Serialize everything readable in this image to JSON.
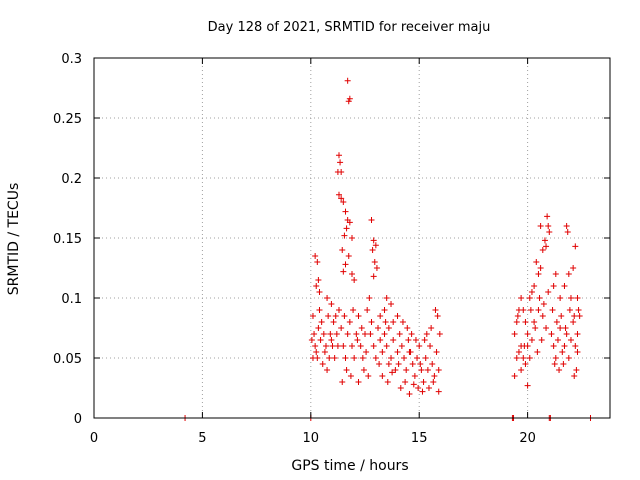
{
  "chart_data": {
    "type": "scatter",
    "title": "Day 128 of 2021, SRMTID for receiver maju",
    "xlabel": "GPS time / hours",
    "ylabel": "SRMTID / TECUs",
    "xlim": [
      0,
      23.8
    ],
    "ylim": [
      0,
      0.3
    ],
    "xticks": [
      0,
      5,
      10,
      15,
      20
    ],
    "xtick_labels": [
      "0",
      "5",
      "10",
      "15",
      "20"
    ],
    "yticks": [
      0,
      0.05,
      0.1,
      0.15,
      0.2,
      0.25,
      0.3
    ],
    "ytick_labels": [
      "0",
      "0.05",
      "0.1",
      "0.15",
      "0.2",
      "0.25",
      "0.3"
    ],
    "grid": true,
    "marker": "+",
    "color": "#e00000",
    "series": [
      {
        "name": "SRMTID",
        "points": [
          [
            4.2,
            0.0
          ],
          [
            10.0,
            0.0
          ],
          [
            19.3,
            0.0
          ],
          [
            19.35,
            0.0
          ],
          [
            21.0,
            0.0
          ],
          [
            21.05,
            0.0
          ],
          [
            22.9,
            0.0
          ],
          [
            11.7,
            0.281
          ],
          [
            11.8,
            0.266
          ],
          [
            11.75,
            0.264
          ],
          [
            11.3,
            0.219
          ],
          [
            11.35,
            0.213
          ],
          [
            11.4,
            0.205
          ],
          [
            11.25,
            0.205
          ],
          [
            11.3,
            0.186
          ],
          [
            11.4,
            0.183
          ],
          [
            11.5,
            0.18
          ],
          [
            11.6,
            0.172
          ],
          [
            11.7,
            0.165
          ],
          [
            11.8,
            0.163
          ],
          [
            11.65,
            0.158
          ],
          [
            11.55,
            0.152
          ],
          [
            11.9,
            0.15
          ],
          [
            11.45,
            0.14
          ],
          [
            11.75,
            0.135
          ],
          [
            11.6,
            0.128
          ],
          [
            11.5,
            0.122
          ],
          [
            11.9,
            0.12
          ],
          [
            12.0,
            0.115
          ],
          [
            12.8,
            0.165
          ],
          [
            12.9,
            0.148
          ],
          [
            13.0,
            0.144
          ],
          [
            12.85,
            0.14
          ],
          [
            12.95,
            0.13
          ],
          [
            13.05,
            0.125
          ],
          [
            12.9,
            0.118
          ],
          [
            10.2,
            0.135
          ],
          [
            10.3,
            0.13
          ],
          [
            10.25,
            0.11
          ],
          [
            10.4,
            0.105
          ],
          [
            10.35,
            0.115
          ],
          [
            20.6,
            0.16
          ],
          [
            20.9,
            0.168
          ],
          [
            20.95,
            0.16
          ],
          [
            21.0,
            0.155
          ],
          [
            20.8,
            0.148
          ],
          [
            20.85,
            0.143
          ],
          [
            20.7,
            0.14
          ],
          [
            21.8,
            0.16
          ],
          [
            21.85,
            0.155
          ],
          [
            22.2,
            0.143
          ],
          [
            22.1,
            0.125
          ],
          [
            20.4,
            0.13
          ],
          [
            20.5,
            0.12
          ],
          [
            20.6,
            0.125
          ],
          [
            20.3,
            0.11
          ],
          [
            20.2,
            0.105
          ],
          [
            20.1,
            0.1
          ],
          [
            21.2,
            0.11
          ],
          [
            21.3,
            0.12
          ],
          [
            21.5,
            0.1
          ],
          [
            21.7,
            0.11
          ],
          [
            21.9,
            0.12
          ],
          [
            22.0,
            0.1
          ],
          [
            19.4,
            0.07
          ],
          [
            19.5,
            0.08
          ],
          [
            19.6,
            0.09
          ],
          [
            19.7,
            0.1
          ],
          [
            19.8,
            0.09
          ],
          [
            19.9,
            0.08
          ],
          [
            20.0,
            0.07
          ],
          [
            19.5,
            0.05
          ],
          [
            19.6,
            0.055
          ],
          [
            19.7,
            0.06
          ],
          [
            19.8,
            0.05
          ],
          [
            19.9,
            0.045
          ],
          [
            20.0,
            0.06
          ],
          [
            20.1,
            0.05
          ],
          [
            19.4,
            0.035
          ],
          [
            19.7,
            0.04
          ],
          [
            20.0,
            0.027
          ],
          [
            20.2,
            0.065
          ],
          [
            20.3,
            0.08
          ],
          [
            20.5,
            0.09
          ],
          [
            20.7,
            0.085
          ],
          [
            21.1,
            0.07
          ],
          [
            21.2,
            0.06
          ],
          [
            21.3,
            0.05
          ],
          [
            21.4,
            0.065
          ],
          [
            21.5,
            0.075
          ],
          [
            21.6,
            0.055
          ],
          [
            21.7,
            0.06
          ],
          [
            21.8,
            0.07
          ],
          [
            21.9,
            0.05
          ],
          [
            22.0,
            0.065
          ],
          [
            22.1,
            0.08
          ],
          [
            22.2,
            0.06
          ],
          [
            22.25,
            0.04
          ],
          [
            22.15,
            0.035
          ],
          [
            22.3,
            0.07
          ],
          [
            22.35,
            0.09
          ],
          [
            22.3,
            0.1
          ],
          [
            22.4,
            0.085
          ],
          [
            10.1,
            0.085
          ],
          [
            10.15,
            0.07
          ],
          [
            10.2,
            0.06
          ],
          [
            10.3,
            0.05
          ],
          [
            10.35,
            0.075
          ],
          [
            10.4,
            0.09
          ],
          [
            10.5,
            0.08
          ],
          [
            10.6,
            0.07
          ],
          [
            10.7,
            0.06
          ],
          [
            10.8,
            0.085
          ],
          [
            10.9,
            0.07
          ],
          [
            11.0,
            0.06
          ],
          [
            11.1,
            0.05
          ],
          [
            11.2,
            0.07
          ],
          [
            10.55,
            0.045
          ],
          [
            10.65,
            0.055
          ],
          [
            10.75,
            0.04
          ],
          [
            10.85,
            0.05
          ],
          [
            10.95,
            0.065
          ],
          [
            11.05,
            0.08
          ],
          [
            11.3,
            0.09
          ],
          [
            11.4,
            0.075
          ],
          [
            11.5,
            0.06
          ],
          [
            11.6,
            0.05
          ],
          [
            11.7,
            0.07
          ],
          [
            11.8,
            0.08
          ],
          [
            11.9,
            0.06
          ],
          [
            11.45,
            0.03
          ],
          [
            11.65,
            0.04
          ],
          [
            11.85,
            0.035
          ],
          [
            12.0,
            0.05
          ],
          [
            12.1,
            0.07
          ],
          [
            12.2,
            0.085
          ],
          [
            12.3,
            0.06
          ],
          [
            12.4,
            0.05
          ],
          [
            12.5,
            0.07
          ],
          [
            12.6,
            0.09
          ],
          [
            12.7,
            0.1
          ],
          [
            12.8,
            0.08
          ],
          [
            12.9,
            0.06
          ],
          [
            13.0,
            0.05
          ],
          [
            12.2,
            0.03
          ],
          [
            12.45,
            0.04
          ],
          [
            12.65,
            0.035
          ],
          [
            13.1,
            0.075
          ],
          [
            13.2,
            0.065
          ],
          [
            13.3,
            0.055
          ],
          [
            13.4,
            0.07
          ],
          [
            13.5,
            0.06
          ],
          [
            13.6,
            0.045
          ],
          [
            13.7,
            0.05
          ],
          [
            13.8,
            0.065
          ],
          [
            13.9,
            0.04
          ],
          [
            14.0,
            0.055
          ],
          [
            14.1,
            0.07
          ],
          [
            13.2,
            0.085
          ],
          [
            13.4,
            0.09
          ],
          [
            13.6,
            0.075
          ],
          [
            13.8,
            0.08
          ],
          [
            14.0,
            0.085
          ],
          [
            13.5,
            0.1
          ],
          [
            13.7,
            0.095
          ],
          [
            13.3,
            0.035
          ],
          [
            13.55,
            0.03
          ],
          [
            13.75,
            0.038
          ],
          [
            14.2,
            0.06
          ],
          [
            14.3,
            0.05
          ],
          [
            14.4,
            0.04
          ],
          [
            14.5,
            0.065
          ],
          [
            14.6,
            0.055
          ],
          [
            14.7,
            0.045
          ],
          [
            14.8,
            0.035
          ],
          [
            14.9,
            0.05
          ],
          [
            15.0,
            0.06
          ],
          [
            15.1,
            0.04
          ],
          [
            15.2,
            0.03
          ],
          [
            14.15,
            0.025
          ],
          [
            14.35,
            0.03
          ],
          [
            14.55,
            0.02
          ],
          [
            14.75,
            0.028
          ],
          [
            14.95,
            0.025
          ],
          [
            15.15,
            0.022
          ],
          [
            15.3,
            0.05
          ],
          [
            15.4,
            0.04
          ],
          [
            15.5,
            0.06
          ],
          [
            15.6,
            0.045
          ],
          [
            15.7,
            0.035
          ],
          [
            15.8,
            0.055
          ],
          [
            15.9,
            0.04
          ],
          [
            15.35,
            0.07
          ],
          [
            15.55,
            0.075
          ],
          [
            15.75,
            0.09
          ],
          [
            15.85,
            0.085
          ],
          [
            15.95,
            0.07
          ],
          [
            15.45,
            0.025
          ],
          [
            15.65,
            0.03
          ],
          [
            15.9,
            0.022
          ],
          [
            14.25,
            0.08
          ],
          [
            14.45,
            0.075
          ],
          [
            14.65,
            0.07
          ],
          [
            14.85,
            0.065
          ],
          [
            13.15,
            0.045
          ],
          [
            12.55,
            0.055
          ],
          [
            12.35,
            0.075
          ],
          [
            12.15,
            0.065
          ],
          [
            11.95,
            0.09
          ],
          [
            11.15,
            0.085
          ],
          [
            10.45,
            0.065
          ],
          [
            10.25,
            0.055
          ],
          [
            10.05,
            0.065
          ],
          [
            10.1,
            0.05
          ],
          [
            10.75,
            0.1
          ],
          [
            10.95,
            0.095
          ],
          [
            11.25,
            0.06
          ],
          [
            11.55,
            0.085
          ],
          [
            12.75,
            0.07
          ],
          [
            13.45,
            0.08
          ],
          [
            14.05,
            0.045
          ],
          [
            14.55,
            0.055
          ],
          [
            15.05,
            0.045
          ],
          [
            15.25,
            0.065
          ],
          [
            19.55,
            0.085
          ],
          [
            19.85,
            0.06
          ],
          [
            20.15,
            0.09
          ],
          [
            20.35,
            0.075
          ],
          [
            20.55,
            0.1
          ],
          [
            20.75,
            0.095
          ],
          [
            20.95,
            0.105
          ],
          [
            21.15,
            0.09
          ],
          [
            21.35,
            0.08
          ],
          [
            21.55,
            0.085
          ],
          [
            21.75,
            0.075
          ],
          [
            21.95,
            0.09
          ],
          [
            22.15,
            0.085
          ],
          [
            22.3,
            0.055
          ],
          [
            21.25,
            0.045
          ],
          [
            21.45,
            0.04
          ],
          [
            21.65,
            0.045
          ],
          [
            20.45,
            0.055
          ],
          [
            20.65,
            0.065
          ],
          [
            20.85,
            0.075
          ]
        ]
      }
    ]
  }
}
